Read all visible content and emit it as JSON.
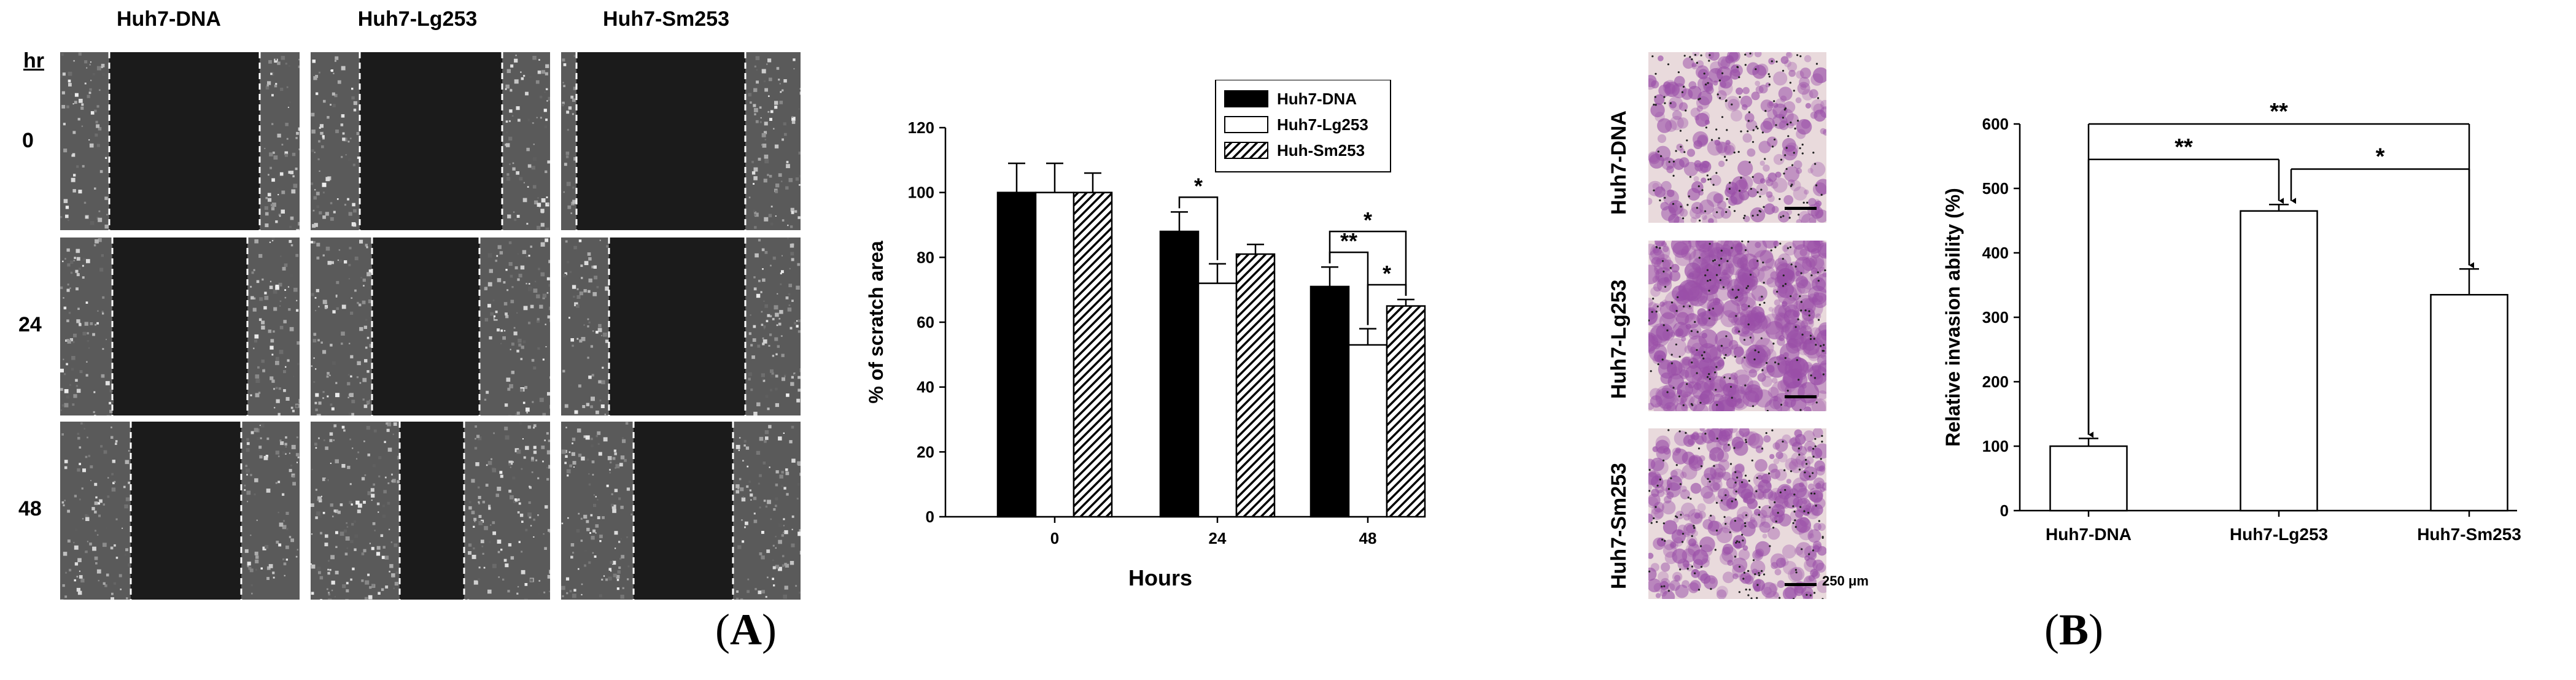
{
  "panel_A": {
    "label": "A",
    "columns": [
      "Huh7-DNA",
      "Huh7-Lg253",
      "Huh7-Sm253"
    ],
    "hour_header": "hr",
    "rows": [
      "0",
      "24",
      "48"
    ]
  },
  "panel_B": {
    "label": "B",
    "images": [
      "Huh7-DNA",
      "Huh7-Lg253",
      "Huh7-Sm253"
    ],
    "scale_bar": "250 μm"
  },
  "chart_data": [
    {
      "type": "bar",
      "title": "",
      "xlabel": "Hours",
      "ylabel": "% of scratch area",
      "categories": [
        "0",
        "24",
        "48"
      ],
      "ylim": [
        0,
        120
      ],
      "yticks": [
        0,
        20,
        40,
        60,
        80,
        100,
        120
      ],
      "legend_position": "top-right",
      "series": [
        {
          "name": "Huh7-DNA",
          "fill": "solid",
          "values": [
            100,
            88,
            71
          ],
          "errors": [
            9,
            6,
            6
          ]
        },
        {
          "name": "Huh7-Lg253",
          "fill": "open",
          "values": [
            100,
            72,
            53
          ],
          "errors": [
            9,
            6,
            5
          ]
        },
        {
          "name": "Huh-Sm253",
          "fill": "hatched",
          "values": [
            100,
            81,
            65
          ],
          "errors": [
            6,
            3,
            2
          ]
        }
      ],
      "annotations": [
        {
          "text": "*",
          "between": [
            "Huh7-DNA",
            "Huh7-Lg253"
          ],
          "at": "24"
        },
        {
          "text": "**",
          "between": [
            "Huh7-DNA",
            "Huh7-Lg253"
          ],
          "at": "48"
        },
        {
          "text": "*",
          "between": [
            "Huh7-Lg253",
            "Huh-Sm253"
          ],
          "at": "48"
        },
        {
          "text": "*",
          "between": [
            "Huh7-DNA",
            "Huh-Sm253"
          ],
          "at": "48"
        }
      ]
    },
    {
      "type": "bar",
      "title": "",
      "xlabel": "",
      "ylabel": "Relative invasion ability (%)",
      "categories": [
        "Huh7-DNA",
        "Huh7-Lg253",
        "Huh7-Sm253"
      ],
      "values": [
        100,
        465,
        335
      ],
      "errors": [
        12,
        10,
        40
      ],
      "ylim": [
        0,
        600
      ],
      "yticks": [
        0,
        100,
        200,
        300,
        400,
        500,
        600
      ],
      "annotations": [
        {
          "text": "**",
          "between": [
            "Huh7-DNA",
            "Huh7-Lg253"
          ]
        },
        {
          "text": "*",
          "between": [
            "Huh7-Lg253",
            "Huh7-Sm253"
          ]
        },
        {
          "text": "**",
          "between": [
            "Huh7-DNA",
            "Huh7-Sm253"
          ]
        }
      ]
    }
  ],
  "colors": {
    "bar_solid": "#000000",
    "bar_open": "#ffffff",
    "axis": "#000000",
    "micrograph_bg": "#e9dadc",
    "micrograph_cell": "#9a4fa8"
  }
}
